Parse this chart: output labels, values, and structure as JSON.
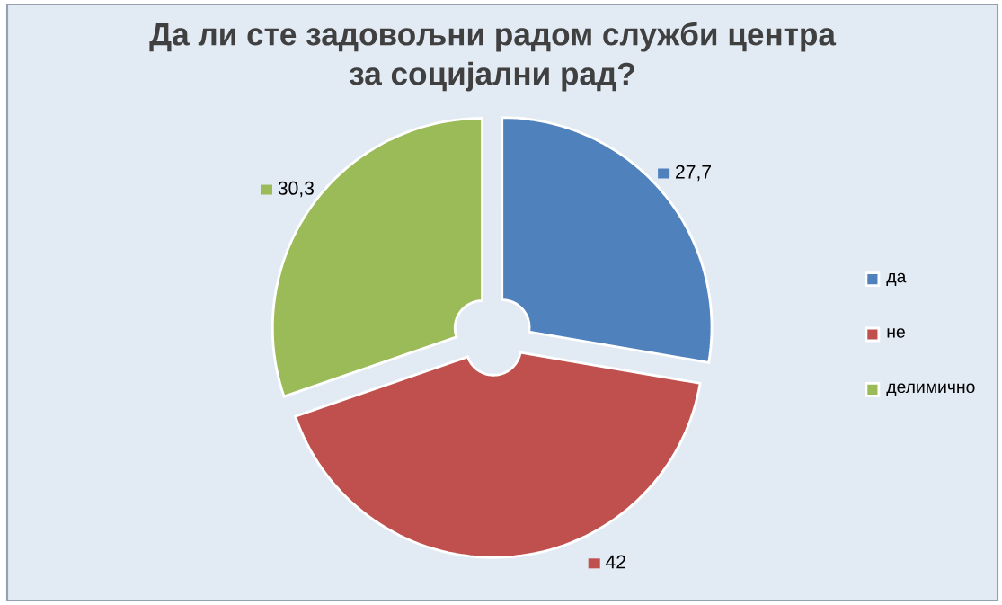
{
  "chart_data": {
    "type": "donut",
    "title": "Да ли сте задовољни радом  служби центра\nза социјални рад?",
    "categories": [
      "да",
      "не",
      "делимично"
    ],
    "values": [
      27.7,
      42,
      30.3
    ],
    "colors": [
      "#4f81bd",
      "#c0504d",
      "#9bbb59"
    ],
    "value_labels": [
      "27,7",
      "42",
      "30,3"
    ],
    "legend": "right"
  }
}
